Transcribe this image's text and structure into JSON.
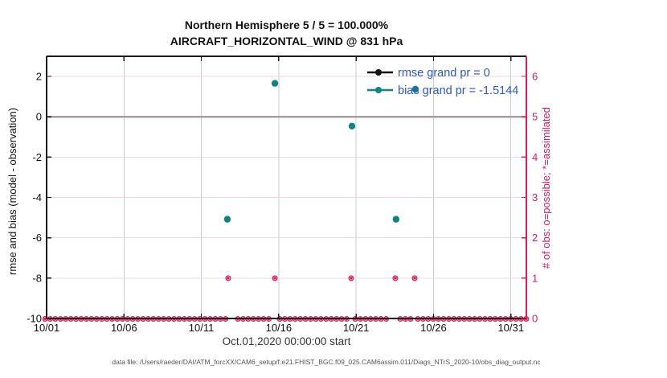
{
  "title": {
    "line1": "Northern Hemisphere 5 / 5 = 100.000%",
    "line2": "AIRCRAFT_HORIZONTAL_WIND @ 831 hPa"
  },
  "axis_labels": {
    "left": "rmse and bias (model - observation)",
    "right": "# of obs: o=possible; *=assimilated",
    "x": "Oct.01,2020 00:00:00 start"
  },
  "footer": "data file: /Users/raeder/DAI/ATM_forcXX/CAM6_setup/f.e21.FHIST_BGC.f09_025.CAM6assim.011/Diags_NTrS_2020-10/obs_diag_output.nc",
  "colors": {
    "spine": "#1a1a1a",
    "crimson": "#e1195f",
    "pink_grid": "#f6d5de",
    "gray_grid": "#cccccc",
    "zero_line": "#9d939b",
    "teal": "#0d8383",
    "rmse_black": "#111111",
    "legend_text": "#2b57d5"
  },
  "legend": {
    "entries": [
      {
        "label": "rmse grand pr = 0",
        "color": "#111111"
      },
      {
        "label": "bias grand pr = -1.5144",
        "color": "#0d8383"
      }
    ]
  },
  "chart_data": {
    "type": "line",
    "title": "Northern Hemisphere 5 / 5 = 100.000%",
    "subtitle": "AIRCRAFT_HORIZONTAL_WIND @ 831 hPa",
    "x_axis": {
      "label": "Oct.01,2020 00:00:00 start",
      "tick_labels": [
        "10/01",
        "10/06",
        "10/11",
        "10/16",
        "10/21",
        "10/26",
        "10/31"
      ],
      "tick_days": [
        1,
        6,
        11,
        16,
        21,
        26,
        31
      ],
      "range_days": [
        1,
        32
      ]
    },
    "y_left": {
      "label": "rmse and bias (model - observation)",
      "tick_values": [
        2,
        0,
        -2,
        -4,
        -6,
        -8,
        -10
      ],
      "tick_labels": [
        "2",
        "0",
        "-2",
        "-4",
        "-6",
        "-8",
        "-10"
      ],
      "range": [
        -10,
        3
      ]
    },
    "y_right": {
      "label": "# of obs: o=possible; *=assimilated",
      "tick_values": [
        6,
        5,
        4,
        3,
        2,
        1,
        0
      ],
      "tick_labels": [
        "6",
        "5",
        "4",
        "3",
        "2",
        "1",
        "0"
      ],
      "range": [
        0,
        6.5
      ]
    },
    "series": [
      {
        "name": "rmse",
        "legend": "rmse grand pr = 0",
        "grand_value": 0,
        "points": []
      },
      {
        "name": "bias",
        "legend": "bias grand pr = -1.5144",
        "grand_value": -1.5144,
        "points": [
          {
            "day": 12.68,
            "value": -5.08
          },
          {
            "day": 15.75,
            "value": 1.66
          },
          {
            "day": 20.73,
            "value": -0.46
          },
          {
            "day": 23.58,
            "value": -5.08
          },
          {
            "day": 24.83,
            "value": 1.37
          }
        ]
      }
    ],
    "obs_counts": {
      "axis": "right",
      "assimilated_count_1_days": [
        12.73,
        15.75,
        20.68,
        23.53,
        24.78
      ],
      "zero_count_segments_days": [
        [
          0.9,
          12.63
        ],
        [
          13.36,
          15.43
        ],
        [
          16.06,
          20.52
        ],
        [
          20.94,
          23.22
        ],
        [
          23.85,
          24.52
        ],
        [
          24.99,
          32.0
        ]
      ],
      "marker_spacing_days": 0.3333
    },
    "gridlines": {
      "vertical_days": [
        6,
        11,
        16,
        21,
        26,
        31
      ],
      "horizontal_right_values": [
        1,
        2,
        3,
        4,
        6
      ],
      "zero_line_left_value": 0
    },
    "legend_position": "top-right-inside"
  }
}
